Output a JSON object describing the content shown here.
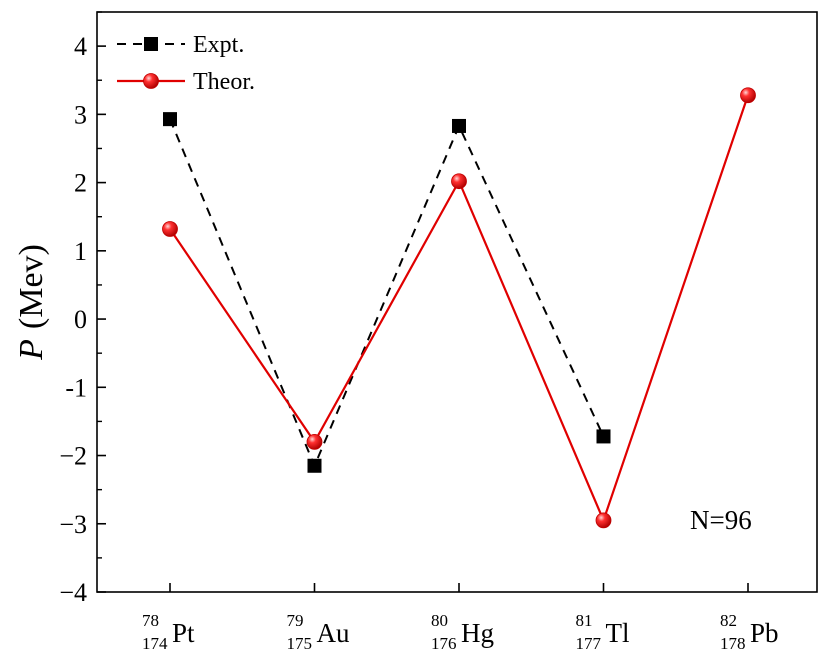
{
  "chart_data": {
    "type": "line",
    "ylabel_symbol": "P",
    "ylabel_unit": "(Mev)",
    "xlabel": "",
    "ylim": [
      -4,
      4.5
    ],
    "yticks": [
      -4,
      -3,
      -2,
      -1,
      0,
      1,
      2,
      3,
      4
    ],
    "ytick_labels": [
      "−4",
      "−3",
      "−2",
      "-1",
      "0",
      "1",
      "2",
      "3",
      "4"
    ],
    "categories": [
      {
        "mass": "174",
        "charge": "78",
        "symbol": "Pt"
      },
      {
        "mass": "175",
        "charge": "79",
        "symbol": "Au"
      },
      {
        "mass": "176",
        "charge": "80",
        "symbol": "Hg"
      },
      {
        "mass": "177",
        "charge": "81",
        "symbol": "Tl"
      },
      {
        "mass": "178",
        "charge": "82",
        "symbol": "Pb"
      }
    ],
    "series": [
      {
        "name": "Expt.",
        "values": [
          2.93,
          -2.15,
          2.83,
          -1.72,
          null
        ],
        "color": "#000000",
        "line": "dashed",
        "marker": "square"
      },
      {
        "name": "Theor.",
        "values": [
          1.32,
          -1.8,
          2.02,
          -2.95,
          3.28
        ],
        "color": "#e00000",
        "line": "solid",
        "marker": "sphere"
      }
    ],
    "legend_position": "top-left",
    "annotation": "N=96",
    "grid": false
  }
}
